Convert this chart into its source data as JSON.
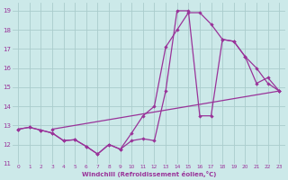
{
  "xlabel": "Windchill (Refroidissement éolien,°C)",
  "xlim": [
    -0.5,
    23.5
  ],
  "ylim": [
    11,
    19.4
  ],
  "xticks": [
    0,
    1,
    2,
    3,
    4,
    5,
    6,
    7,
    8,
    9,
    10,
    11,
    12,
    13,
    14,
    15,
    16,
    17,
    18,
    19,
    20,
    21,
    22,
    23
  ],
  "yticks": [
    11,
    12,
    13,
    14,
    15,
    16,
    17,
    18,
    19
  ],
  "bg_color": "#cce9e9",
  "grid_color": "#aacccc",
  "line_color": "#993399",
  "lines": [
    {
      "x": [
        0,
        1,
        2,
        3,
        4,
        5,
        6,
        7,
        8,
        9,
        10,
        11,
        12,
        13,
        14,
        15,
        16,
        17,
        18,
        19,
        20,
        21,
        22,
        23
      ],
      "y": [
        12.8,
        12.9,
        12.75,
        12.6,
        12.2,
        12.25,
        11.9,
        11.5,
        12.0,
        11.75,
        12.6,
        13.5,
        14.0,
        17.1,
        18.0,
        18.9,
        18.9,
        18.3,
        17.5,
        17.4,
        16.6,
        16.0,
        15.2,
        14.8
      ]
    },
    {
      "x": [
        0,
        1,
        2,
        3,
        4,
        5,
        6,
        7,
        8,
        9,
        10,
        11,
        12,
        13,
        14,
        15,
        16,
        17,
        18,
        19,
        20,
        21,
        22,
        23
      ],
      "y": [
        12.8,
        12.9,
        12.75,
        12.6,
        12.2,
        12.25,
        11.9,
        11.5,
        12.0,
        11.75,
        12.2,
        12.3,
        12.2,
        14.8,
        19.0,
        19.0,
        13.5,
        13.5,
        17.5,
        17.4,
        16.6,
        15.2,
        15.5,
        14.8
      ]
    },
    {
      "x": [
        3,
        23
      ],
      "y": [
        12.8,
        14.8
      ]
    }
  ]
}
